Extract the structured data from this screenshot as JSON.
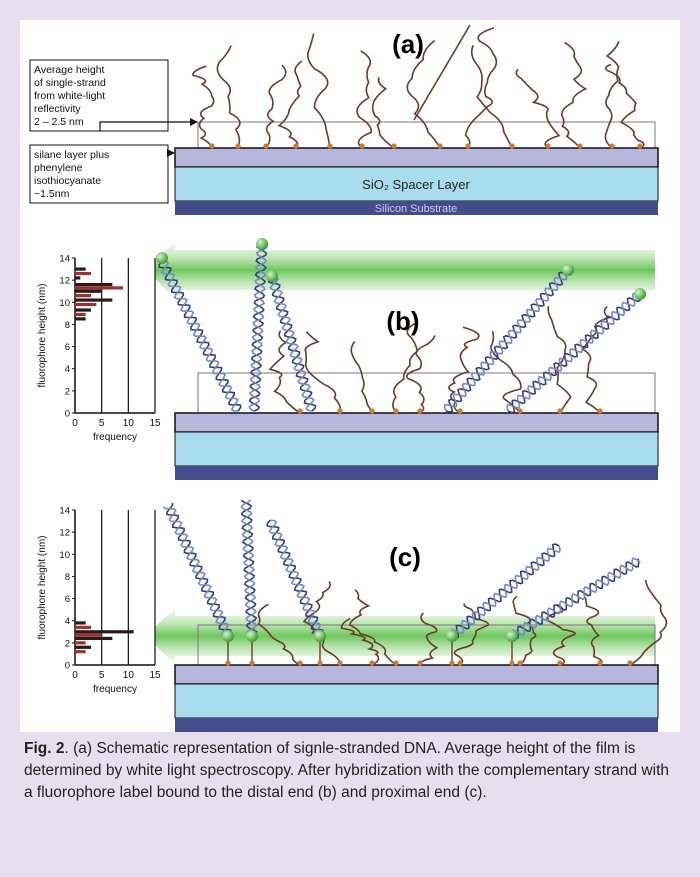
{
  "panels": [
    {
      "label": "(a)"
    },
    {
      "label": "(b)"
    },
    {
      "label": "(c)"
    }
  ],
  "annotations": [
    {
      "lines": [
        "Average height",
        "of single-strand",
        "from white-light",
        "reflectivity",
        "2 – 2.5 nm"
      ]
    },
    {
      "lines": [
        "silane layer plus",
        "phenylene",
        "isothiocyanate",
        "~1.5nm"
      ]
    }
  ],
  "layers": {
    "spacer": "SiO₂ Spacer Layer",
    "substrate": "Silicon Substrate"
  },
  "histograms": [
    {
      "ylabel": "fluorophore height (nm)",
      "xlabel": "frequency",
      "xlim": [
        0,
        15
      ],
      "ylim": [
        0,
        14
      ],
      "xticks": [
        0,
        5,
        10,
        15
      ],
      "yticks": [
        0,
        2,
        4,
        6,
        8,
        10,
        12,
        14
      ],
      "grid": true,
      "heights": [
        13.0,
        12.6,
        12.2,
        11.6,
        11.3,
        11.0,
        10.6,
        10.2,
        9.8,
        9.3,
        8.9,
        8.5
      ],
      "frequencies": [
        2,
        3,
        1,
        7,
        9,
        5,
        3,
        7,
        4,
        3,
        2,
        2
      ],
      "colors": [
        "#2a1a1a",
        "#a0302a",
        "#2a1a1a",
        "#2a1a1a",
        "#a0302a",
        "#2a1a1a",
        "#a0302a",
        "#2a1a1a",
        "#a0302a",
        "#2a1a1a",
        "#a0302a",
        "#2a1a1a"
      ]
    },
    {
      "ylabel": "fluorophore height (nm)",
      "xlabel": "frequency",
      "xlim": [
        0,
        15
      ],
      "ylim": [
        0,
        14
      ],
      "xticks": [
        0,
        5,
        10,
        15
      ],
      "yticks": [
        0,
        2,
        4,
        6,
        8,
        10,
        12,
        14
      ],
      "grid": true,
      "heights": [
        3.8,
        3.4,
        3.0,
        2.7,
        2.4,
        2.0,
        1.6,
        1.2
      ],
      "frequencies": [
        2,
        3,
        11,
        5,
        7,
        2,
        3,
        2
      ],
      "colors": [
        "#2a1a1a",
        "#a0302a",
        "#2a1a1a",
        "#a0302a",
        "#2a1a1a",
        "#a0302a",
        "#2a1a1a",
        "#a0302a"
      ]
    }
  ],
  "caption": {
    "label": "Fig. 2",
    "text": ". (a) Schematic representation of signle-stranded DNA. Average height of the film is determined by white light spectroscopy.  After hybridization with the complementary strand with a fluorophore label bound to the distal end (b) and proximal end (c)."
  }
}
